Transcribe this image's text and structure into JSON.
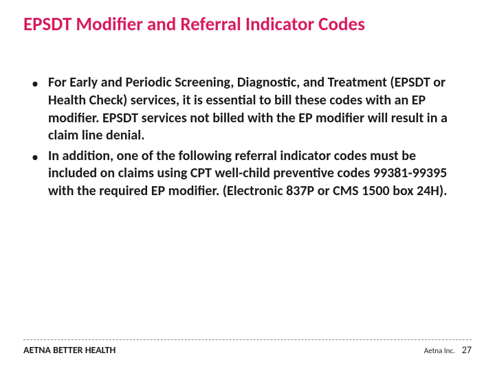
{
  "title": "EPSDT Modifier and Referral Indicator Codes",
  "bullets": [
    "For Early and Periodic Screening, Diagnostic, and Treatment (EPSDT or Health Check) services, it is essential to bill these codes with an EP modifier.  EPSDT services not billed with the EP modifier will result in a claim line denial.",
    "In addition, one of the following referral indicator codes must be included on claims using CPT well-child preventive codes 99381-99395 with the required EP modifier. (Electronic 837P or CMS 1500 box 24H)."
  ],
  "footer": {
    "left": "AETNA BETTER HEALTH",
    "company": "Aetna Inc.",
    "page": "27"
  },
  "colors": {
    "title": "#d81b60",
    "text": "#1a1a1a",
    "background": "#ffffff"
  }
}
